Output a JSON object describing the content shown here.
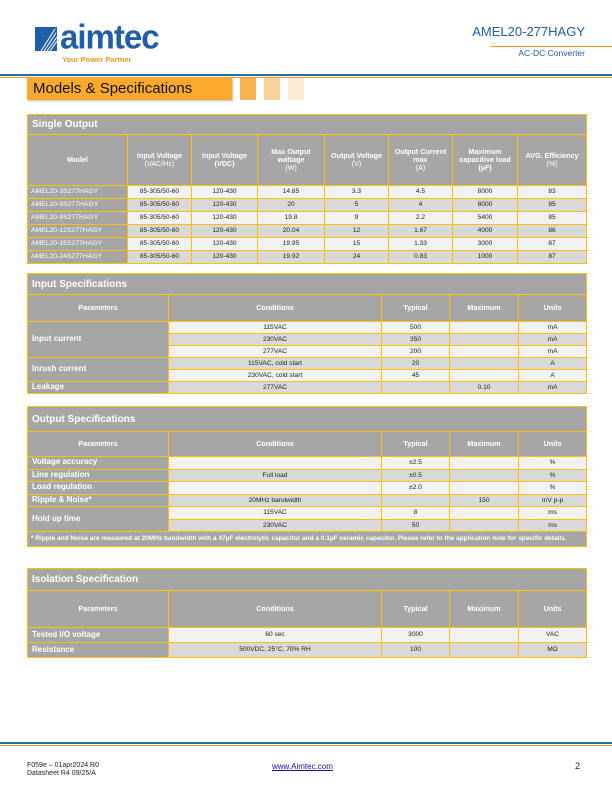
{
  "header": {
    "logo_text": "aimtec",
    "logo_tagline": "Your Power Partner",
    "product": "AMEL20-277HAGY",
    "subtitle": "AC-DC Converter",
    "section_banner": "Models & Specifications"
  },
  "colors": {
    "brand_blue": "#1F5EA8",
    "orange": "#FBA92D",
    "border": "#FFC000",
    "header_gray": "#A6A6A6"
  },
  "single_output": {
    "title": "Single Output",
    "headers": [
      [
        "Model",
        ""
      ],
      [
        "Input Voltage",
        "(VAC/Hz)"
      ],
      [
        "Input Voltage (VDC)",
        ""
      ],
      [
        "Max Output wattage",
        "(W)"
      ],
      [
        "Output Voltage",
        "(V)"
      ],
      [
        "Output Current max",
        "(A)"
      ],
      [
        "Maximum capacitive load (µF)",
        ""
      ],
      [
        "AVG. Efficiency",
        "(%)"
      ]
    ],
    "rows": [
      [
        "AMEL20-3S277HAGY",
        "85-305/50-60",
        "120-430",
        "14.85",
        "3.3",
        "4.5",
        "8000",
        "83"
      ],
      [
        "AMEL20-5S277HAGY",
        "85-305/50-60",
        "120-430",
        "20",
        "5",
        "4",
        "8000",
        "85"
      ],
      [
        "AMEL20-9S277HAGY",
        "85-305/50-60",
        "120-430",
        "19.8",
        "9",
        "2.2",
        "5400",
        "85"
      ],
      [
        "AMEL20-12S277HAGY",
        "85-305/50-60",
        "120-430",
        "20.04",
        "12",
        "1.67",
        "4000",
        "86"
      ],
      [
        "AMEL20-15S277HAGY",
        "85-305/50-60",
        "120-430",
        "19.95",
        "15",
        "1.33",
        "3000",
        "87"
      ],
      [
        "AMEL20-24S277HAGY",
        "85-305/50-60",
        "120-430",
        "19.92",
        "24",
        "0.83",
        "1000",
        "87"
      ]
    ]
  },
  "input_spec": {
    "title": "Input Specifications",
    "headers": [
      "Parameters",
      "Conditions",
      "Typical",
      "Maximum",
      "Units"
    ],
    "groups": [
      {
        "param": "Input current",
        "rows": [
          [
            "115VAC",
            "500",
            "",
            "mA"
          ],
          [
            "230VAC",
            "350",
            "",
            "mA"
          ],
          [
            "277VAC",
            "200",
            "",
            "mA"
          ]
        ]
      },
      {
        "param": "Inrush current",
        "rows": [
          [
            "115VAC, cold start",
            "20",
            "",
            "A"
          ],
          [
            "230VAC, cold start",
            "45",
            "",
            "A"
          ]
        ]
      },
      {
        "param": "Leakage",
        "rows": [
          [
            "277VAC",
            "",
            "0.10",
            "mA"
          ]
        ]
      }
    ]
  },
  "output_spec": {
    "title": "Output Specifications",
    "headers": [
      "Parameters",
      "Conditions",
      "Typical",
      "Maximum",
      "Units"
    ],
    "groups": [
      {
        "param": "Voltage accuracy",
        "rows": [
          [
            "",
            "±2.5",
            "",
            "%"
          ]
        ]
      },
      {
        "param": "Line regulation",
        "rows": [
          [
            "Full load",
            "±0.5",
            "",
            "%"
          ]
        ]
      },
      {
        "param": "Load regulation",
        "rows": [
          [
            "",
            "±2.0",
            "",
            "%"
          ]
        ]
      },
      {
        "param": "Ripple & Noise*",
        "rows": [
          [
            "20MHz bandwidth",
            "",
            "150",
            "mV p-p"
          ]
        ]
      },
      {
        "param": "Hold up time",
        "rows": [
          [
            "115VAC",
            "8",
            "",
            "ms"
          ],
          [
            "230VAC",
            "50",
            "",
            "ms"
          ]
        ]
      }
    ],
    "note": "* Ripple and Noise are measured at 20MHz bandwidth with a 47µF electrolytic capacitor and a 0.1µF ceramic capacitor. Please refer to the application note for specific details."
  },
  "isolation_spec": {
    "title": "Isolation Specification",
    "headers": [
      "Parameters",
      "Conditions",
      "Typical",
      "Maximum",
      "Units"
    ],
    "groups": [
      {
        "param": "Tested I/O voltage",
        "rows": [
          [
            "60 sec",
            "3000",
            "",
            "VAC"
          ]
        ]
      },
      {
        "param": "Resistance",
        "rows": [
          [
            "500VDC, 25°C, 70% RH",
            "100",
            "",
            "MΩ"
          ]
        ]
      }
    ]
  },
  "footer": {
    "form": "F059e – 01apr2024 R0",
    "datasheet": "Datasheet R4 09/25/A",
    "link": "www.Aimtec.com",
    "page": "2"
  }
}
